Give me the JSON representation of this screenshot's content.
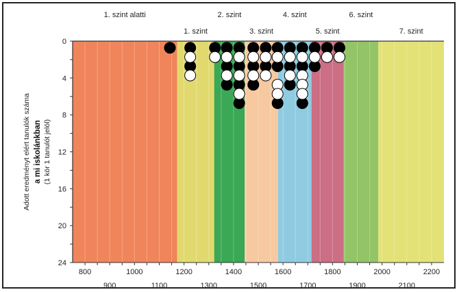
{
  "chart_data": {
    "type": "scatter",
    "description_none": "",
    "ylabel_lines": [
      "Adott eredményt elért tanulók száma",
      "a mi iskolánkban",
      "(1 kör 1 tanulót jelöl)"
    ],
    "xlim": [
      750,
      2250
    ],
    "ylim": [
      0,
      24
    ],
    "x_ticks_upper": [
      800,
      1000,
      1200,
      1400,
      1600,
      1800,
      2000,
      2200
    ],
    "x_ticks_lower": [
      900,
      1100,
      1300,
      1500,
      1700,
      1900,
      2100
    ],
    "y_ticks": [
      0,
      4,
      8,
      12,
      16,
      20,
      24
    ],
    "bands": [
      {
        "label": "1. szint alatti",
        "from": 750,
        "to": 1172,
        "color": "#f0845a",
        "label_row": "top"
      },
      {
        "label": "1. szint",
        "from": 1172,
        "to": 1322,
        "color": "#e2d96e",
        "label_row": "bottom"
      },
      {
        "label": "2. szint",
        "from": 1322,
        "to": 1445,
        "color": "#3aa855",
        "label_row": "top"
      },
      {
        "label": "3. szint",
        "from": 1445,
        "to": 1580,
        "color": "#f7c9a0",
        "label_row": "bottom"
      },
      {
        "label": "4. szint",
        "from": 1580,
        "to": 1715,
        "color": "#8fcbe0",
        "label_row": "top"
      },
      {
        "label": "5. szint",
        "from": 1715,
        "to": 1845,
        "color": "#cc6e84",
        "label_row": "bottom"
      },
      {
        "label": "6. szint",
        "from": 1845,
        "to": 1985,
        "color": "#93c466",
        "label_row": "top"
      },
      {
        "label": "7. szint",
        "from": 1985,
        "to": 2250,
        "color": "#e3e277",
        "label_row": "bottom"
      }
    ],
    "series": [
      {
        "color": "black",
        "points": [
          [
            1143,
            1
          ],
          [
            1225,
            1
          ],
          [
            1225,
            3
          ],
          [
            1325,
            1
          ],
          [
            1373,
            1
          ],
          [
            1373,
            3
          ],
          [
            1373,
            5
          ],
          [
            1423,
            1
          ],
          [
            1423,
            3
          ],
          [
            1423,
            5
          ],
          [
            1423,
            7
          ],
          [
            1480,
            1
          ],
          [
            1480,
            3
          ],
          [
            1480,
            5
          ],
          [
            1530,
            1
          ],
          [
            1530,
            3
          ],
          [
            1578,
            1
          ],
          [
            1578,
            3
          ],
          [
            1578,
            7
          ],
          [
            1628,
            1
          ],
          [
            1628,
            3
          ],
          [
            1628,
            5
          ],
          [
            1678,
            1
          ],
          [
            1678,
            3
          ],
          [
            1678,
            7
          ],
          [
            1728,
            1
          ],
          [
            1728,
            3
          ],
          [
            1778,
            1
          ],
          [
            1828,
            1
          ]
        ]
      },
      {
        "color": "white",
        "points": [
          [
            1225,
            2
          ],
          [
            1225,
            4
          ],
          [
            1325,
            2
          ],
          [
            1373,
            2
          ],
          [
            1373,
            4
          ],
          [
            1423,
            2
          ],
          [
            1423,
            4
          ],
          [
            1423,
            6
          ],
          [
            1480,
            2
          ],
          [
            1480,
            4
          ],
          [
            1530,
            2
          ],
          [
            1530,
            4
          ],
          [
            1578,
            2
          ],
          [
            1578,
            5
          ],
          [
            1578,
            6
          ],
          [
            1628,
            2
          ],
          [
            1628,
            4
          ],
          [
            1678,
            2
          ],
          [
            1678,
            4
          ],
          [
            1678,
            5
          ],
          [
            1678,
            6
          ],
          [
            1728,
            2
          ],
          [
            1778,
            2
          ],
          [
            1828,
            2
          ]
        ]
      }
    ]
  }
}
